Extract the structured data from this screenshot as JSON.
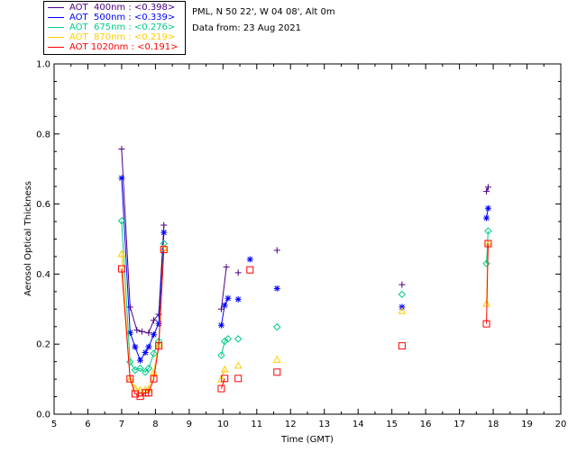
{
  "info": {
    "location": "PML, N 50 22', W 04 08', Alt 0m",
    "date": "Data from: 23 Aug 2021"
  },
  "legend": [
    {
      "label": "AOT  400nm : <0.398>",
      "color": "#4b0082"
    },
    {
      "label": "AOT  500nm : <0.339>",
      "color": "#0000ff"
    },
    {
      "label": "AOT  675nm : <0.276>",
      "color": "#00cc88"
    },
    {
      "label": "AOT  870nm : <0.219>",
      "color": "#ffcc00"
    },
    {
      "label": "AOT 1020nm : <0.191>",
      "color": "#ff0000"
    }
  ],
  "chart_data": {
    "type": "line",
    "xlabel": "Time (GMT)",
    "ylabel": "Aerosol Optical Thickness",
    "xlim": [
      5,
      20
    ],
    "ylim": [
      0.0,
      1.0
    ],
    "xticks": [
      "5",
      "6",
      "7",
      "8",
      "9",
      "10",
      "11",
      "12",
      "13",
      "14",
      "15",
      "16",
      "17",
      "18",
      "19",
      "20"
    ],
    "yticks": [
      "0.0",
      "0.2",
      "0.4",
      "0.6",
      "0.8",
      "1.0"
    ],
    "grid": false,
    "series": [
      {
        "name": "AOT  400nm : <0.398>",
        "color": "#4b0082",
        "marker": "plus",
        "segments": [
          [
            [
              7.0,
              0.757
            ],
            [
              7.25,
              0.306
            ],
            [
              7.45,
              0.24
            ],
            [
              7.6,
              0.236
            ],
            [
              7.8,
              0.232
            ],
            [
              7.95,
              0.268
            ],
            [
              8.1,
              0.285
            ],
            [
              8.25,
              0.54
            ]
          ],
          [
            [
              9.95,
              0.3
            ],
            [
              10.1,
              0.42
            ]
          ],
          [
            [
              10.45,
              0.404
            ]
          ],
          [
            [
              11.6,
              0.468
            ]
          ],
          [
            [
              15.3,
              0.37
            ]
          ],
          [
            [
              17.8,
              0.636
            ],
            [
              17.85,
              0.648
            ]
          ]
        ]
      },
      {
        "name": "AOT  500nm : <0.339>",
        "color": "#0000ff",
        "marker": "asterisk",
        "segments": [
          [
            [
              7.0,
              0.674
            ],
            [
              7.25,
              0.233
            ],
            [
              7.4,
              0.192
            ],
            [
              7.55,
              0.154
            ],
            [
              7.7,
              0.176
            ],
            [
              7.8,
              0.192
            ],
            [
              7.95,
              0.227
            ],
            [
              8.1,
              0.259
            ],
            [
              8.25,
              0.519
            ]
          ],
          [
            [
              9.95,
              0.254
            ],
            [
              10.05,
              0.311
            ],
            [
              10.15,
              0.331
            ]
          ],
          [
            [
              10.45,
              0.328
            ]
          ],
          [
            [
              10.8,
              0.442
            ]
          ],
          [
            [
              11.6,
              0.359
            ]
          ],
          [
            [
              15.3,
              0.306
            ]
          ],
          [
            [
              17.8,
              0.56
            ],
            [
              17.85,
              0.588
            ]
          ]
        ]
      },
      {
        "name": "AOT  675nm : <0.276>",
        "color": "#00cc88",
        "marker": "diamond",
        "segments": [
          [
            [
              7.0,
              0.552
            ],
            [
              7.25,
              0.149
            ],
            [
              7.4,
              0.126
            ],
            [
              7.55,
              0.131
            ],
            [
              7.7,
              0.12
            ],
            [
              7.8,
              0.131
            ],
            [
              7.95,
              0.173
            ],
            [
              8.1,
              0.208
            ],
            [
              8.25,
              0.487
            ]
          ],
          [
            [
              9.95,
              0.168
            ],
            [
              10.05,
              0.208
            ],
            [
              10.15,
              0.215
            ]
          ],
          [
            [
              10.45,
              0.215
            ]
          ],
          [
            [
              11.6,
              0.249
            ]
          ],
          [
            [
              15.3,
              0.342
            ]
          ],
          [
            [
              17.8,
              0.43
            ],
            [
              17.85,
              0.523
            ]
          ]
        ]
      },
      {
        "name": "AOT  870nm : <0.219>",
        "color": "#ffcc00",
        "marker": "triangle",
        "segments": [
          [
            [
              7.0,
              0.458
            ],
            [
              7.25,
              0.1
            ],
            [
              7.4,
              0.074
            ],
            [
              7.55,
              0.069
            ],
            [
              7.7,
              0.07
            ],
            [
              7.8,
              0.072
            ],
            [
              7.95,
              0.12
            ],
            [
              8.1,
              0.199
            ],
            [
              8.25,
              0.475
            ]
          ],
          [
            [
              9.95,
              0.1
            ],
            [
              10.05,
              0.128
            ]
          ],
          [
            [
              10.45,
              0.139
            ]
          ],
          [
            [
              11.6,
              0.156
            ]
          ],
          [
            [
              15.3,
              0.295
            ]
          ],
          [
            [
              17.8,
              0.316
            ],
            [
              17.85,
              0.486
            ]
          ]
        ]
      },
      {
        "name": "AOT 1020nm : <0.191>",
        "color": "#ff0000",
        "marker": "square",
        "segments": [
          [
            [
              7.0,
              0.415
            ],
            [
              7.25,
              0.101
            ],
            [
              7.4,
              0.058
            ],
            [
              7.55,
              0.051
            ],
            [
              7.7,
              0.061
            ],
            [
              7.8,
              0.061
            ],
            [
              7.95,
              0.101
            ],
            [
              8.1,
              0.195
            ],
            [
              8.25,
              0.47
            ]
          ],
          [
            [
              9.95,
              0.073
            ],
            [
              10.05,
              0.102
            ]
          ],
          [
            [
              10.45,
              0.102
            ]
          ],
          [
            [
              10.8,
              0.412
            ]
          ],
          [
            [
              11.6,
              0.12
            ]
          ],
          [
            [
              15.3,
              0.195
            ]
          ],
          [
            [
              17.8,
              0.258
            ],
            [
              17.85,
              0.487
            ]
          ]
        ]
      }
    ]
  }
}
